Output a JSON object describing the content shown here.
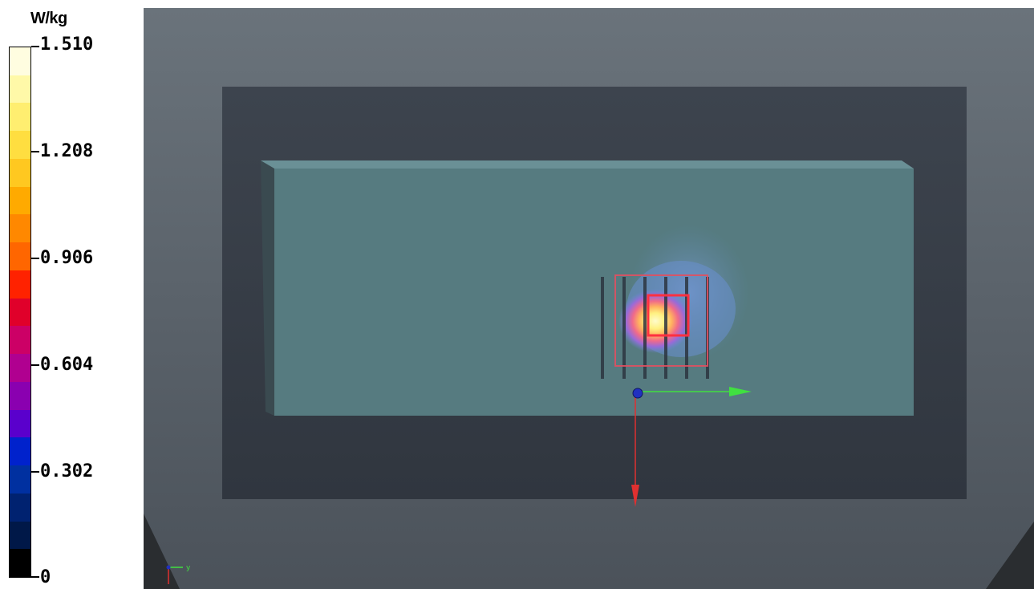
{
  "legend": {
    "unit": "W/kg",
    "ticks": [
      "1.510",
      "1.208",
      "0.906",
      "0.604",
      "0.302",
      "0"
    ],
    "colors": [
      "#fffde0",
      "#fff9a8",
      "#ffee70",
      "#ffde40",
      "#ffc820",
      "#ffaa00",
      "#ff8800",
      "#ff6600",
      "#ff2200",
      "#e0002a",
      "#cc0066",
      "#b00090",
      "#8a00b0",
      "#5a00cc",
      "#0022cc",
      "#0030a0",
      "#002270",
      "#001848",
      "#000000"
    ]
  },
  "scene": {
    "background_color": "#5d6670",
    "board_color": "#363d47",
    "phantom_color": "#567b80",
    "axis_x_color": "#e03030",
    "axis_y_color": "#40e040",
    "origin_color": "#2030c0",
    "mini_axis_label": "y"
  }
}
